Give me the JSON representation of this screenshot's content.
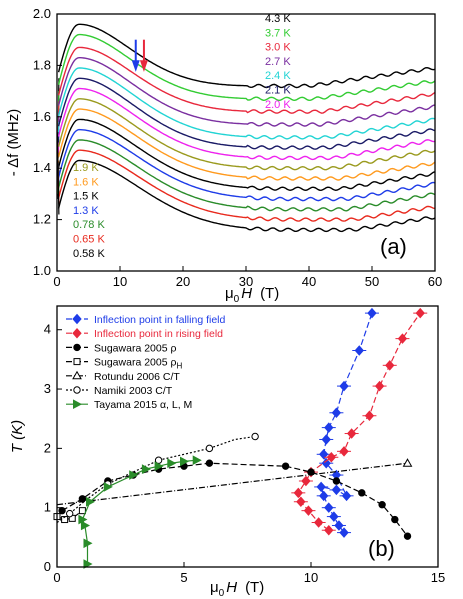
{
  "colors": {
    "c4_3": "#000000",
    "c3_7": "#33cc33",
    "c3_0": "#e8283c",
    "c2_7": "#7a2fa0",
    "c2_4": "#22d4d4",
    "c2_1": "#1a1a66",
    "c2_0": "#ee22ee",
    "c1_9": "#9a9a1e",
    "c1_6": "#ff9a1e",
    "c1_5": "#000000",
    "c1_3": "#1e3ce8",
    "c0_78": "#2a8c2a",
    "c0_65": "#e82a1e",
    "c0_58": "#000000",
    "blue": "#1e3ce8",
    "red": "#e8283c",
    "green": "#2a8c2a"
  },
  "chart_data": [
    {
      "type": "line",
      "panel_label": "(a)",
      "xlabel_parts": {
        "mu": "μ",
        "sub": "0",
        "var": "H",
        "unit": "(T)"
      },
      "ylabel": "- Δf (MHz)",
      "xlim": [
        0,
        60
      ],
      "ylim": [
        1.0,
        2.0
      ],
      "xticks": [
        "0",
        "10",
        "20",
        "30",
        "40",
        "50",
        "60"
      ],
      "yticks": [
        "1.0",
        "1.2",
        "1.4",
        "1.6",
        "1.8",
        "2.0"
      ],
      "legend_high": [
        "4.3 K",
        "3.7 K",
        "3.0 K",
        "2.7 K",
        "2.4 K",
        "2.1 K",
        "2.0 K"
      ],
      "legend_low": [
        "1.9 K",
        "1.6 K",
        "1.5 K",
        "1.3 K",
        "0.78 K",
        "0.65 K",
        "0.58 K"
      ],
      "arrows": [
        {
          "x": 12.5,
          "color_key": "blue"
        },
        {
          "x": 13.8,
          "color_key": "red"
        }
      ],
      "series": [
        {
          "name": "4.3 K",
          "color_key": "c4_3",
          "y_start": 1.75,
          "y_peak": 1.96,
          "x_peak": 3.5,
          "y_min": 1.72,
          "x_min": 40,
          "y_end": 1.79
        },
        {
          "name": "3.7 K",
          "color_key": "c3_7",
          "y_start": 1.7,
          "y_peak": 1.92,
          "x_peak": 3.5,
          "y_min": 1.67,
          "x_min": 41,
          "y_end": 1.74
        },
        {
          "name": "3.0 K",
          "color_key": "c3_0",
          "y_start": 1.66,
          "y_peak": 1.87,
          "x_peak": 3.5,
          "y_min": 1.62,
          "x_min": 42,
          "y_end": 1.69
        },
        {
          "name": "2.7 K",
          "color_key": "c2_7",
          "y_start": 1.62,
          "y_peak": 1.83,
          "x_peak": 3.5,
          "y_min": 1.57,
          "x_min": 42,
          "y_end": 1.64
        },
        {
          "name": "2.4 K",
          "color_key": "c2_4",
          "y_start": 1.58,
          "y_peak": 1.79,
          "x_peak": 3.5,
          "y_min": 1.52,
          "x_min": 43,
          "y_end": 1.59
        },
        {
          "name": "2.1 K",
          "color_key": "c2_1",
          "y_start": 1.54,
          "y_peak": 1.75,
          "x_peak": 3.5,
          "y_min": 1.48,
          "x_min": 43,
          "y_end": 1.55
        },
        {
          "name": "2.0 K",
          "color_key": "c2_0",
          "y_start": 1.5,
          "y_peak": 1.71,
          "x_peak": 3.5,
          "y_min": 1.44,
          "x_min": 44,
          "y_end": 1.51
        },
        {
          "name": "1.9 K",
          "color_key": "c1_9",
          "y_start": 1.46,
          "y_peak": 1.67,
          "x_peak": 3.5,
          "y_min": 1.4,
          "x_min": 44,
          "y_end": 1.47
        },
        {
          "name": "1.6 K",
          "color_key": "c1_6",
          "y_start": 1.42,
          "y_peak": 1.63,
          "x_peak": 3.5,
          "y_min": 1.36,
          "x_min": 45,
          "y_end": 1.42
        },
        {
          "name": "1.5 K",
          "color_key": "c1_5",
          "y_start": 1.38,
          "y_peak": 1.59,
          "x_peak": 3.5,
          "y_min": 1.32,
          "x_min": 45,
          "y_end": 1.38
        },
        {
          "name": "1.3 K",
          "color_key": "c1_3",
          "y_start": 1.34,
          "y_peak": 1.55,
          "x_peak": 3.5,
          "y_min": 1.28,
          "x_min": 46,
          "y_end": 1.34
        },
        {
          "name": "0.78 K",
          "color_key": "c0_78",
          "y_start": 1.3,
          "y_peak": 1.51,
          "x_peak": 3.5,
          "y_min": 1.24,
          "x_min": 46,
          "y_end": 1.3
        },
        {
          "name": "0.65 K",
          "color_key": "c0_65",
          "y_start": 1.26,
          "y_peak": 1.47,
          "x_peak": 3.5,
          "y_min": 1.2,
          "x_min": 47,
          "y_end": 1.25
        },
        {
          "name": "0.58 K",
          "color_key": "c0_58",
          "y_start": 1.22,
          "y_peak": 1.43,
          "x_peak": 3.5,
          "y_min": 1.16,
          "x_min": 47,
          "y_end": 1.21
        }
      ]
    },
    {
      "type": "scatter",
      "panel_label": "(b)",
      "xlabel_parts": {
        "mu": "μ",
        "sub": "0",
        "var": "H",
        "unit": "(T)"
      },
      "ylabel": "T (K)",
      "xlim": [
        0,
        15
      ],
      "ylim": [
        0,
        4.4
      ],
      "xticks": [
        "0",
        "5",
        "10",
        "15"
      ],
      "yticks": [
        "0",
        "1",
        "2",
        "3",
        "4"
      ],
      "legend": [
        {
          "label": "Inflection point in falling field",
          "color_key": "blue",
          "marker": "diamond",
          "filled": true,
          "dash": "6,3",
          "colored_text": true
        },
        {
          "label": "Inflection point in rising field",
          "color_key": "red",
          "marker": "diamond",
          "filled": true,
          "dash": "6,3",
          "colored_text": true
        },
        {
          "label": "Sugawara 2005 ρ",
          "color_key": "c0_58",
          "marker": "circle",
          "filled": true,
          "dash": "6,3"
        },
        {
          "label": "Sugawara 2005 ρ",
          "sub": "H",
          "color_key": "c0_58",
          "marker": "square",
          "filled": false,
          "dash": "6,3"
        },
        {
          "label": "Rotundu 2006 C/T",
          "color_key": "c0_58",
          "marker": "triangle",
          "filled": false,
          "dash": "6,2,1,2"
        },
        {
          "label": "Namiki 2003 C/T",
          "color_key": "c0_58",
          "marker": "circle",
          "filled": false,
          "dash": "2,2"
        },
        {
          "label": "Tayama 2015 α, L, M",
          "color_key": "green",
          "marker": "tri-right",
          "filled": true,
          "dash": ""
        }
      ],
      "series": [
        {
          "name": "Inflection point in falling field",
          "color_key": "blue",
          "points": [
            [
              11.3,
              0.58
            ],
            [
              11.1,
              0.7
            ],
            [
              10.9,
              0.85
            ],
            [
              10.7,
              1.0
            ],
            [
              10.5,
              1.2
            ],
            [
              10.4,
              1.35
            ],
            [
              11.0,
              1.3
            ],
            [
              11.4,
              1.2
            ],
            [
              11.0,
              1.55
            ],
            [
              10.6,
              1.75
            ],
            [
              10.5,
              1.9
            ],
            [
              10.6,
              2.15
            ],
            [
              10.7,
              2.35
            ],
            [
              11.0,
              2.6
            ],
            [
              11.3,
              3.05
            ],
            [
              11.9,
              3.65
            ],
            [
              12.4,
              4.28
            ]
          ]
        },
        {
          "name": "Inflection point in rising field",
          "color_key": "red",
          "points": [
            [
              10.7,
              0.62
            ],
            [
              10.3,
              0.75
            ],
            [
              9.9,
              0.95
            ],
            [
              9.6,
              1.1
            ],
            [
              9.5,
              1.25
            ],
            [
              9.8,
              1.45
            ],
            [
              10.0,
              1.6
            ],
            [
              10.8,
              1.85
            ],
            [
              11.3,
              1.95
            ],
            [
              11.6,
              2.25
            ],
            [
              12.3,
              2.55
            ],
            [
              12.7,
              3.05
            ],
            [
              13.1,
              3.4
            ],
            [
              13.6,
              3.85
            ],
            [
              14.3,
              4.28
            ]
          ]
        },
        {
          "name": "Sugawara 2005 ρ",
          "color_key": "c0_58",
          "points": [
            [
              0.2,
              0.95
            ],
            [
              1.0,
              1.15
            ],
            [
              2.0,
              1.45
            ],
            [
              3.0,
              1.55
            ],
            [
              4.0,
              1.65
            ],
            [
              5.0,
              1.7
            ],
            [
              6.0,
              1.75
            ],
            [
              9.0,
              1.7
            ],
            [
              10.0,
              1.6
            ],
            [
              11.0,
              1.45
            ],
            [
              12.0,
              1.25
            ],
            [
              12.8,
              1.05
            ],
            [
              13.3,
              0.8
            ],
            [
              13.8,
              0.52
            ]
          ]
        },
        {
          "name": "Sugawara 2005 ρH",
          "color_key": "c0_58",
          "points": [
            [
              0.0,
              0.85
            ],
            [
              0.3,
              0.8
            ],
            [
              0.6,
              0.82
            ],
            [
              1.0,
              0.95
            ]
          ]
        },
        {
          "name": "Rotundu 2006 C/T",
          "color_key": "c0_58",
          "points": [
            [
              0.0,
              1.05
            ],
            [
              13.8,
              1.75
            ]
          ]
        },
        {
          "name": "Namiki 2003 C/T",
          "color_key": "c0_58",
          "points": [
            [
              0.0,
              0.75
            ],
            [
              0.5,
              0.9
            ],
            [
              1.2,
              1.15
            ],
            [
              2.0,
              1.4
            ],
            [
              3.0,
              1.6
            ],
            [
              4.0,
              1.8
            ],
            [
              5.0,
              1.9
            ],
            [
              6.0,
              2.0
            ],
            [
              7.0,
              2.15
            ],
            [
              7.8,
              2.2
            ]
          ]
        },
        {
          "name": "Tayama 2015 α, L, M",
          "color_key": "green",
          "points": [
            [
              1.2,
              0.05
            ],
            [
              1.2,
              0.4
            ],
            [
              1.1,
              0.7
            ],
            [
              1.0,
              0.8
            ],
            [
              1.3,
              1.1
            ],
            [
              2.0,
              1.35
            ],
            [
              3.0,
              1.55
            ],
            [
              3.5,
              1.65
            ],
            [
              4.0,
              1.7
            ],
            [
              4.5,
              1.75
            ],
            [
              5.0,
              1.78
            ],
            [
              5.5,
              1.8
            ]
          ]
        }
      ]
    }
  ]
}
